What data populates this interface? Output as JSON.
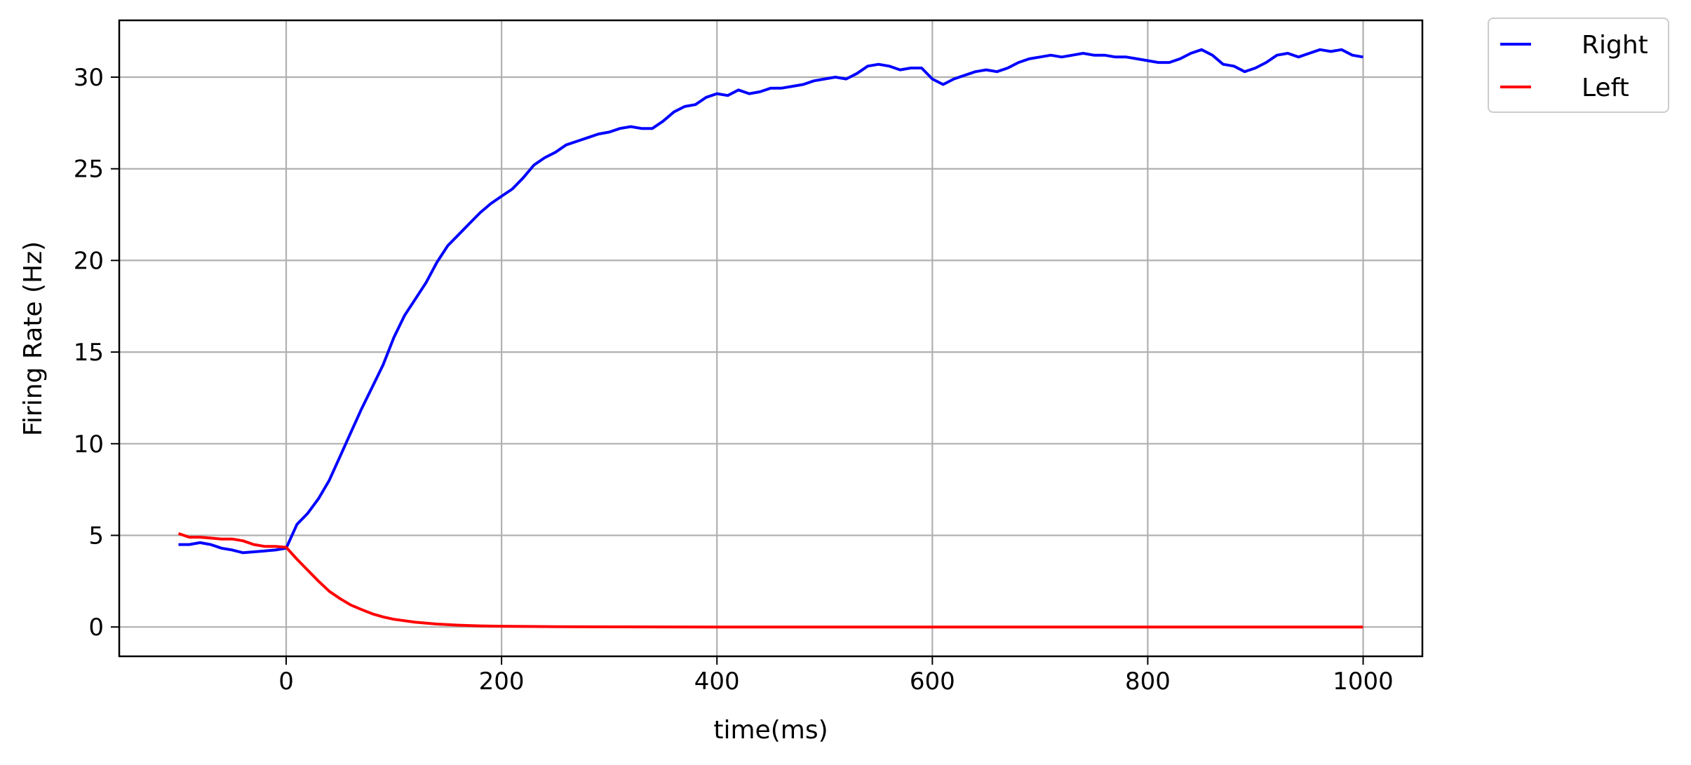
{
  "chart_data": {
    "type": "line",
    "title": "",
    "xlabel": "time(ms)",
    "ylabel": "Firing Rate (Hz)",
    "xlim": [
      -155,
      1055
    ],
    "ylim": [
      -1.6,
      33.1
    ],
    "xticks": [
      0,
      200,
      400,
      600,
      800,
      1000
    ],
    "yticks": [
      0,
      5,
      10,
      15,
      20,
      25,
      30
    ],
    "grid": true,
    "legend_position": "outside-top-right",
    "series": [
      {
        "name": "Right",
        "color": "#0000ff",
        "points": [
          [
            -100,
            4.5
          ],
          [
            -90,
            4.5
          ],
          [
            -80,
            4.6
          ],
          [
            -70,
            4.5
          ],
          [
            -60,
            4.3
          ],
          [
            -50,
            4.2
          ],
          [
            -40,
            4.05
          ],
          [
            -30,
            4.1
          ],
          [
            -20,
            4.15
          ],
          [
            -10,
            4.2
          ],
          [
            0,
            4.3
          ],
          [
            10,
            5.6
          ],
          [
            20,
            6.2
          ],
          [
            30,
            7.0
          ],
          [
            40,
            8.0
          ],
          [
            50,
            9.3
          ],
          [
            60,
            10.6
          ],
          [
            70,
            11.9
          ],
          [
            80,
            13.1
          ],
          [
            90,
            14.3
          ],
          [
            100,
            15.8
          ],
          [
            110,
            17.0
          ],
          [
            120,
            17.9
          ],
          [
            130,
            18.8
          ],
          [
            140,
            19.9
          ],
          [
            150,
            20.8
          ],
          [
            160,
            21.4
          ],
          [
            170,
            22.0
          ],
          [
            180,
            22.6
          ],
          [
            190,
            23.1
          ],
          [
            200,
            23.5
          ],
          [
            210,
            23.9
          ],
          [
            220,
            24.5
          ],
          [
            230,
            25.2
          ],
          [
            240,
            25.6
          ],
          [
            250,
            25.9
          ],
          [
            260,
            26.3
          ],
          [
            270,
            26.5
          ],
          [
            280,
            26.7
          ],
          [
            290,
            26.9
          ],
          [
            300,
            27.0
          ],
          [
            310,
            27.2
          ],
          [
            320,
            27.3
          ],
          [
            330,
            27.2
          ],
          [
            340,
            27.2
          ],
          [
            350,
            27.6
          ],
          [
            360,
            28.1
          ],
          [
            370,
            28.4
          ],
          [
            380,
            28.5
          ],
          [
            390,
            28.9
          ],
          [
            400,
            29.1
          ],
          [
            410,
            29.0
          ],
          [
            420,
            29.3
          ],
          [
            430,
            29.1
          ],
          [
            440,
            29.2
          ],
          [
            450,
            29.4
          ],
          [
            460,
            29.4
          ],
          [
            470,
            29.5
          ],
          [
            480,
            29.6
          ],
          [
            490,
            29.8
          ],
          [
            500,
            29.9
          ],
          [
            510,
            30.0
          ],
          [
            520,
            29.9
          ],
          [
            530,
            30.2
          ],
          [
            540,
            30.6
          ],
          [
            550,
            30.7
          ],
          [
            560,
            30.6
          ],
          [
            570,
            30.4
          ],
          [
            580,
            30.5
          ],
          [
            590,
            30.5
          ],
          [
            600,
            29.9
          ],
          [
            610,
            29.6
          ],
          [
            620,
            29.9
          ],
          [
            630,
            30.1
          ],
          [
            640,
            30.3
          ],
          [
            650,
            30.4
          ],
          [
            660,
            30.3
          ],
          [
            670,
            30.5
          ],
          [
            680,
            30.8
          ],
          [
            690,
            31.0
          ],
          [
            700,
            31.1
          ],
          [
            710,
            31.2
          ],
          [
            720,
            31.1
          ],
          [
            730,
            31.2
          ],
          [
            740,
            31.3
          ],
          [
            750,
            31.2
          ],
          [
            760,
            31.2
          ],
          [
            770,
            31.1
          ],
          [
            780,
            31.1
          ],
          [
            790,
            31.0
          ],
          [
            800,
            30.9
          ],
          [
            810,
            30.8
          ],
          [
            820,
            30.8
          ],
          [
            830,
            31.0
          ],
          [
            840,
            31.3
          ],
          [
            850,
            31.5
          ],
          [
            860,
            31.2
          ],
          [
            870,
            30.7
          ],
          [
            880,
            30.6
          ],
          [
            890,
            30.3
          ],
          [
            900,
            30.5
          ],
          [
            910,
            30.8
          ],
          [
            920,
            31.2
          ],
          [
            930,
            31.3
          ],
          [
            940,
            31.1
          ],
          [
            950,
            31.3
          ],
          [
            960,
            31.5
          ],
          [
            970,
            31.4
          ],
          [
            980,
            31.5
          ],
          [
            990,
            31.2
          ],
          [
            1000,
            31.1
          ]
        ]
      },
      {
        "name": "Left",
        "color": "#ff0000",
        "points": [
          [
            -100,
            5.1
          ],
          [
            -90,
            4.9
          ],
          [
            -80,
            4.9
          ],
          [
            -70,
            4.85
          ],
          [
            -60,
            4.8
          ],
          [
            -50,
            4.8
          ],
          [
            -40,
            4.7
          ],
          [
            -30,
            4.5
          ],
          [
            -20,
            4.4
          ],
          [
            -10,
            4.4
          ],
          [
            0,
            4.35
          ],
          [
            10,
            3.7
          ],
          [
            20,
            3.1
          ],
          [
            30,
            2.5
          ],
          [
            40,
            1.95
          ],
          [
            50,
            1.55
          ],
          [
            60,
            1.2
          ],
          [
            70,
            0.95
          ],
          [
            80,
            0.72
          ],
          [
            90,
            0.55
          ],
          [
            100,
            0.42
          ],
          [
            120,
            0.26
          ],
          [
            140,
            0.16
          ],
          [
            160,
            0.1
          ],
          [
            180,
            0.06
          ],
          [
            200,
            0.04
          ],
          [
            250,
            0.015
          ],
          [
            300,
            0.005
          ],
          [
            400,
            0
          ],
          [
            500,
            0
          ],
          [
            600,
            0
          ],
          [
            700,
            0
          ],
          [
            800,
            0
          ],
          [
            900,
            0
          ],
          [
            1000,
            0
          ]
        ]
      }
    ]
  }
}
